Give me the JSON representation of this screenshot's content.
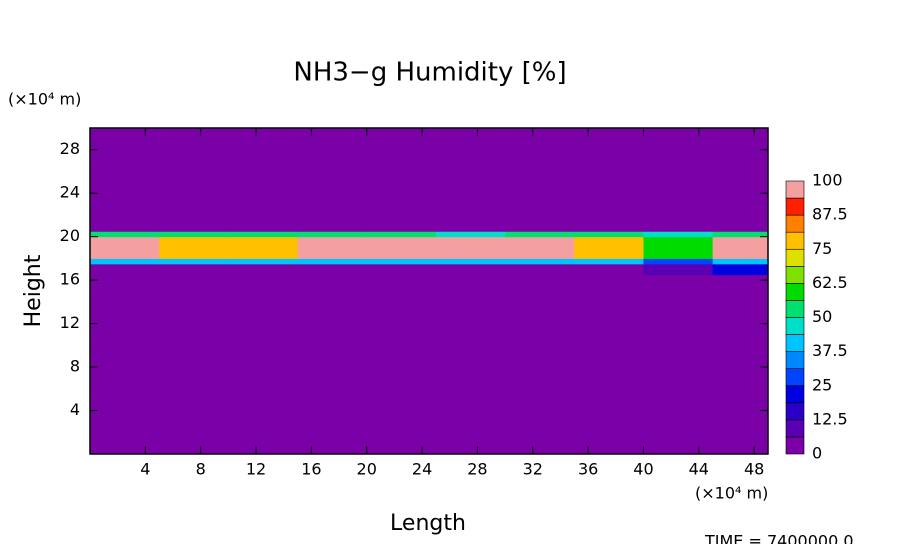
{
  "chart_data": {
    "type": "contour",
    "title": "NH3−g Humidity [%]",
    "x_label": "Length",
    "y_label": "Height",
    "x_unit": "(×10⁴ m)",
    "y_unit": "(×10⁴ m)",
    "footer": "TIME = 7400000.0",
    "xlim": [
      0,
      49
    ],
    "ylim": [
      0,
      30
    ],
    "xticks": [
      4,
      8,
      12,
      16,
      20,
      24,
      28,
      32,
      36,
      40,
      44,
      48
    ],
    "yticks": [
      4,
      8,
      12,
      16,
      20,
      24,
      28
    ],
    "x_edges": [
      0,
      5,
      10,
      15,
      20,
      25,
      30,
      35,
      40,
      45,
      49
    ],
    "y_edges": [
      0,
      16.5,
      17.5,
      18,
      20,
      20.5,
      30
    ],
    "z": [
      [
        0,
        0,
        0,
        0,
        0,
        0,
        0,
        0,
        0,
        0
      ],
      [
        5,
        5,
        5,
        5,
        5,
        5,
        5,
        5,
        10,
        20
      ],
      [
        40,
        40,
        40,
        40,
        40,
        40,
        40,
        40,
        30,
        40
      ],
      [
        95,
        80,
        80,
        95,
        95,
        95,
        95,
        80,
        60,
        95
      ],
      [
        55,
        50,
        50,
        50,
        50,
        45,
        50,
        50,
        45,
        55
      ],
      [
        0,
        0,
        0,
        0,
        0,
        0,
        0,
        0,
        0,
        0
      ]
    ],
    "levels": [
      0,
      6.25,
      12.5,
      18.75,
      25,
      31.25,
      37.5,
      43.75,
      50,
      56.25,
      62.5,
      68.75,
      75,
      81.25,
      87.5,
      93.75,
      100
    ],
    "colors": [
      "#7b00a8",
      "#5a00b4",
      "#2a00c8",
      "#0000e0",
      "#0044ff",
      "#0088ff",
      "#00c4ff",
      "#00e0c8",
      "#00e070",
      "#00dc00",
      "#80e000",
      "#e0e000",
      "#ffc000",
      "#ff8000",
      "#ff2000",
      "#f4a0a0"
    ],
    "colorbar_ticks": [
      0,
      12.5,
      25,
      37.5,
      50,
      62.5,
      75,
      87.5,
      100
    ]
  }
}
